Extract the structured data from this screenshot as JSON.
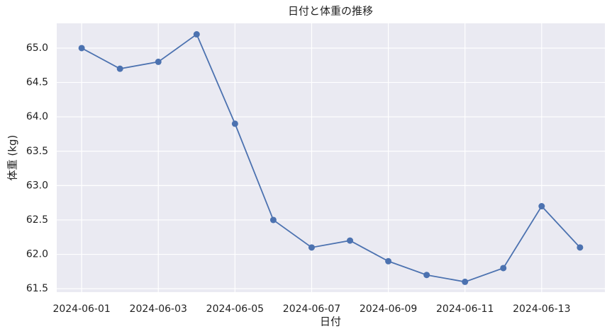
{
  "chart_data": {
    "type": "line",
    "title": "日付と体重の推移",
    "x_label": "日付",
    "y_label": "体重 (kg)",
    "x": [
      "2024-06-01",
      "2024-06-02",
      "2024-06-03",
      "2024-06-04",
      "2024-06-05",
      "2024-06-06",
      "2024-06-07",
      "2024-06-08",
      "2024-06-09",
      "2024-06-10",
      "2024-06-11",
      "2024-06-12",
      "2024-06-13",
      "2024-06-14"
    ],
    "values": [
      65.0,
      64.7,
      64.8,
      65.2,
      63.9,
      62.5,
      62.1,
      62.2,
      61.9,
      61.7,
      61.6,
      61.8,
      62.7,
      62.1
    ],
    "color": "#4c72b0",
    "xticks": [
      "2024-06-01",
      "2024-06-03",
      "2024-06-05",
      "2024-06-07",
      "2024-06-09",
      "2024-06-11",
      "2024-06-13"
    ],
    "ylim": [
      61.45,
      65.36
    ],
    "yticks": [
      61.5,
      {
        "value": 62,
        "label": "62.0"
      },
      62.5,
      {
        "value": 63,
        "label": "63.0"
      },
      63.5,
      {
        "value": 64,
        "label": "64.0"
      },
      64.5,
      {
        "value": 65,
        "label": "65.0"
      }
    ],
    "grid": true,
    "background": "#eaeaf2"
  }
}
